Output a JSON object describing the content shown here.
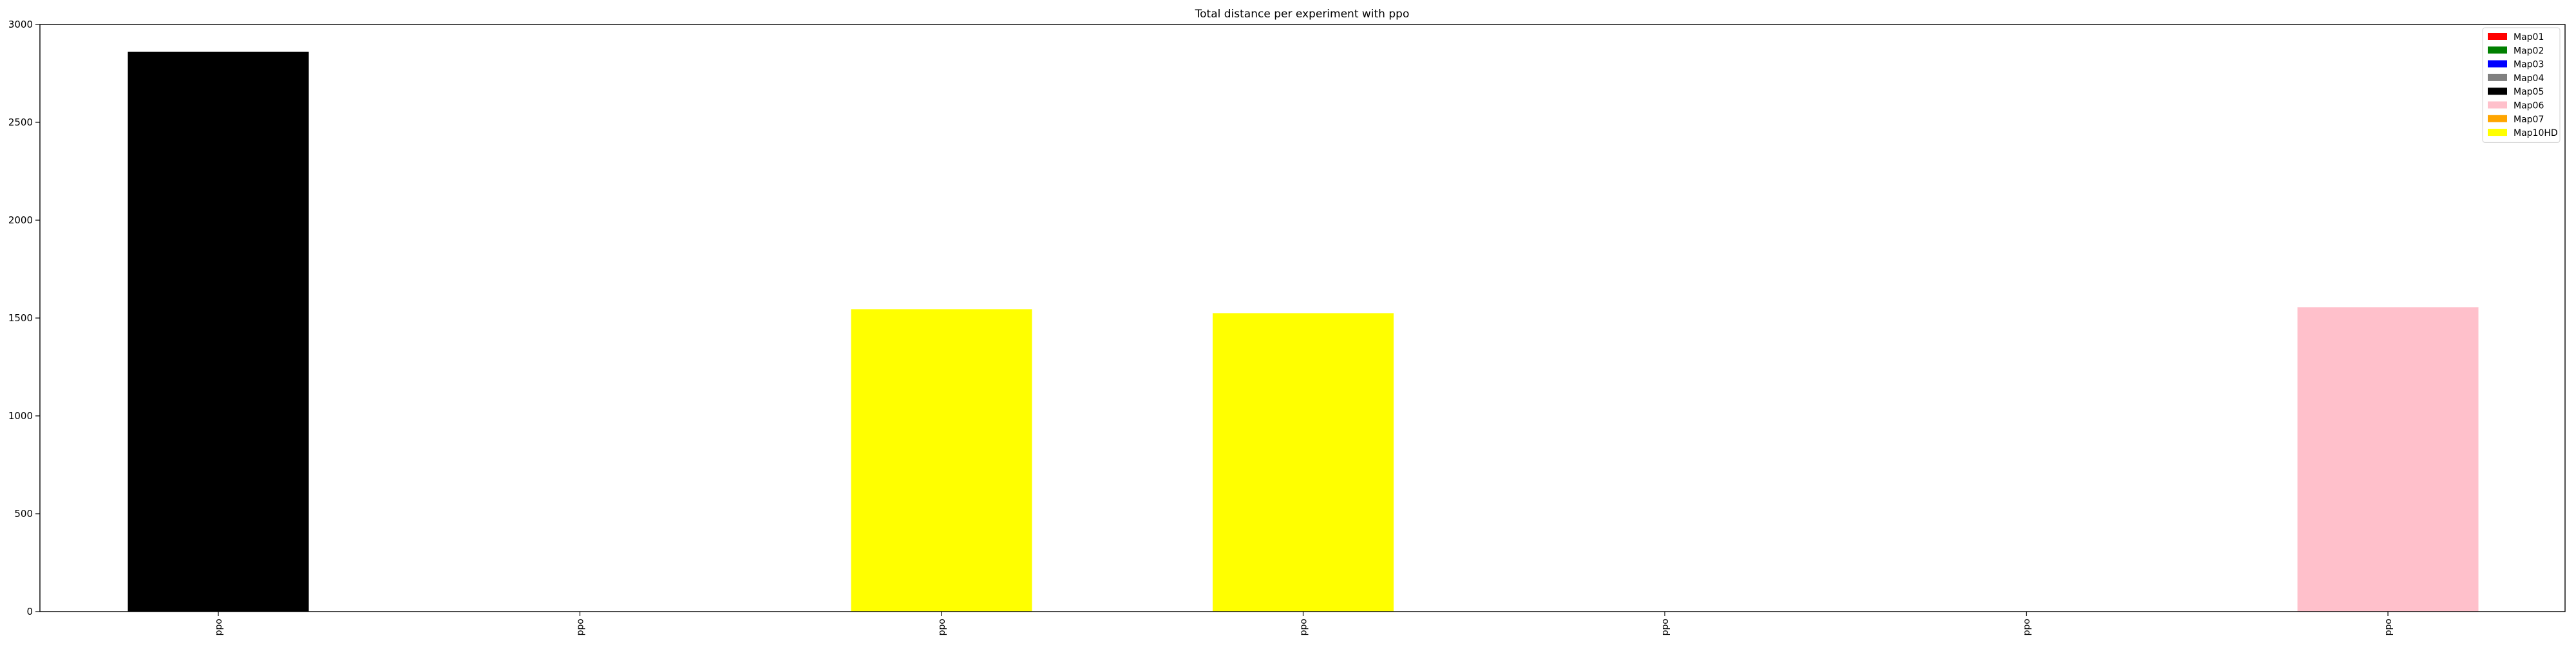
{
  "chart_data": {
    "type": "bar",
    "title": "Total distance per experiment with ppo",
    "xlabel": "",
    "ylabel": "",
    "ylim": [
      0,
      3000
    ],
    "yticks": [
      0,
      500,
      1000,
      1500,
      2000,
      2500,
      3000
    ],
    "grid": false,
    "legend_position": "top-right",
    "categories": [
      "ppo",
      "ppo",
      "ppo",
      "ppo",
      "ppo",
      "ppo",
      "ppo"
    ],
    "values": [
      2860,
      0,
      1545,
      1525,
      0,
      0,
      1555
    ],
    "bar_colors": [
      "#000000",
      "#ffffff",
      "#ffff00",
      "#ffff00",
      "#ffffff",
      "#ffffff",
      "#ffc0cb"
    ],
    "legend": [
      {
        "label": "Map01",
        "color": "#ff0000"
      },
      {
        "label": "Map02",
        "color": "#008000"
      },
      {
        "label": "Map03",
        "color": "#0000ff"
      },
      {
        "label": "Map04",
        "color": "#808080"
      },
      {
        "label": "Map05",
        "color": "#000000"
      },
      {
        "label": "Map06",
        "color": "#ffc0cb"
      },
      {
        "label": "Map07",
        "color": "#ffa500"
      },
      {
        "label": "Map10HD",
        "color": "#ffff00"
      }
    ]
  }
}
